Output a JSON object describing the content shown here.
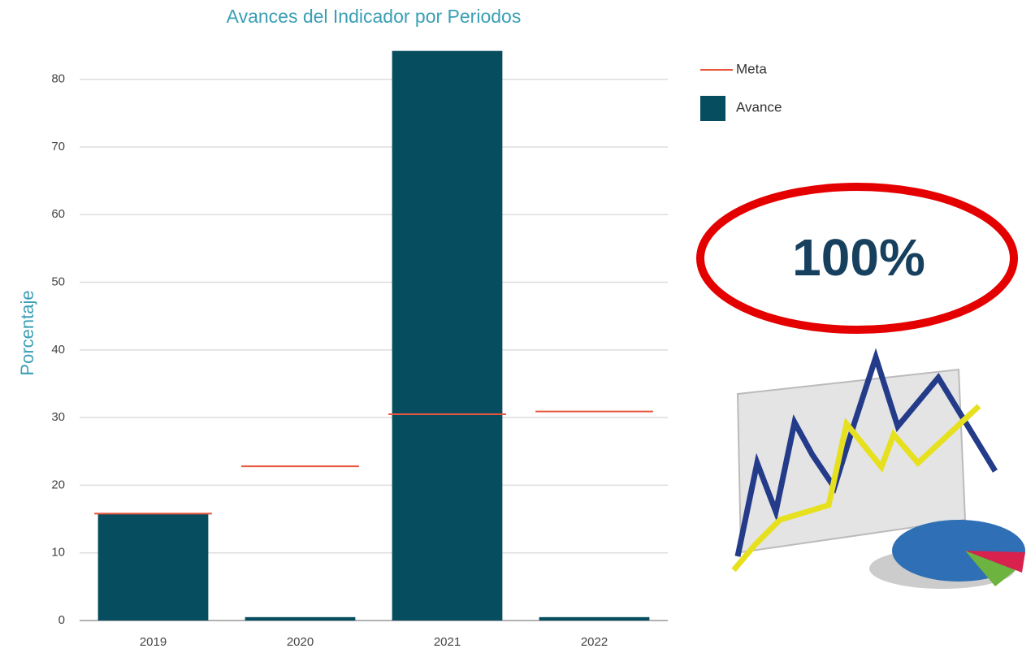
{
  "chart_data": {
    "type": "bar",
    "title": "Avances del Indicador por Periodos",
    "y_label": "Porcentaje",
    "categories": [
      "2019",
      "2020",
      "2021",
      "2022"
    ],
    "series": [
      {
        "name": "Meta",
        "type": "line",
        "color": "#e8543c",
        "values": [
          15.8,
          22.8,
          30.5,
          30.9
        ]
      },
      {
        "name": "Avance",
        "type": "bar",
        "color": "#064e5f",
        "values": [
          15.8,
          0.5,
          84.2,
          0.5
        ]
      }
    ],
    "ylim": [
      0,
      85
    ],
    "yticks": [
      0,
      10,
      20,
      30,
      40,
      50,
      60,
      70,
      80
    ],
    "grid": true,
    "legend": "right",
    "annotation": "100%"
  }
}
